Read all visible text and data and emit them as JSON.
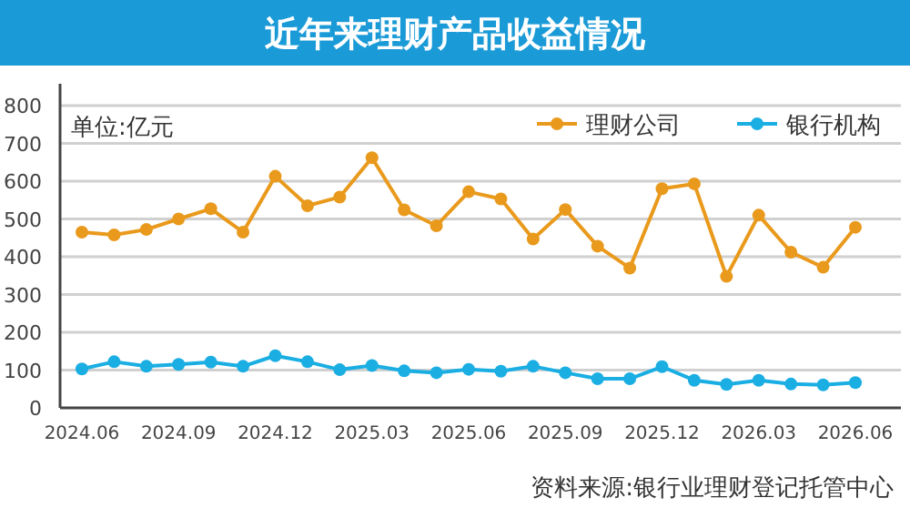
{
  "chart_data": {
    "type": "line",
    "title": "近年来理财产品收益情况",
    "categories": [
      "2024.06",
      null,
      null,
      "2024.09",
      null,
      null,
      "2024.12",
      null,
      null,
      "2025.03",
      null,
      null,
      "2025.06",
      null,
      null,
      "2025.09",
      null,
      null,
      "2025.12",
      null,
      null,
      "2026.03",
      null,
      null,
      "2026.06"
    ],
    "series": [
      {
        "name": "理财公司",
        "color": "#e99a1c",
        "values": [
          465,
          458,
          472,
          500,
          527,
          465,
          613,
          535,
          558,
          662,
          524,
          482,
          572,
          553,
          447,
          525,
          428,
          370,
          580,
          593,
          348,
          510,
          412,
          372,
          478
        ]
      },
      {
        "name": "银行机构",
        "color": "#1aaee3",
        "values": [
          103,
          122,
          110,
          115,
          121,
          110,
          138,
          122,
          101,
          112,
          98,
          93,
          102,
          97,
          110,
          93,
          77,
          77,
          109,
          73,
          62,
          73,
          63,
          61,
          67
        ]
      }
    ],
    "ylim": [
      0,
      800
    ],
    "yticks": [
      0,
      100,
      200,
      300,
      400,
      500,
      600,
      700,
      800
    ],
    "grid": "y",
    "legend": "top right",
    "marker": "circle",
    "line_style": "solid",
    "annotations": [
      "单位:亿元",
      "资料来源:银行业理财登记托管中心"
    ]
  }
}
